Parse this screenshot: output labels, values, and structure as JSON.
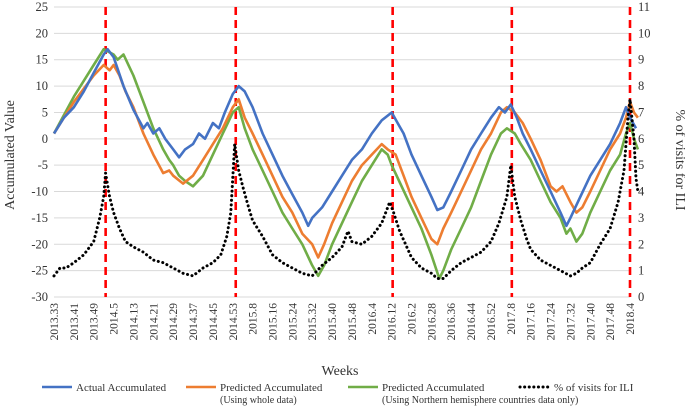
{
  "chart_data": {
    "type": "line",
    "xlabel": "Weeks",
    "ylabel_left": "Accumulated Value",
    "ylabel_right": "% of visits for ILI",
    "ylim_left": [
      -30,
      25
    ],
    "ylim_right": [
      0,
      11
    ],
    "yticks_left": [
      "-30",
      "-25",
      "-20",
      "-15",
      "-10",
      "-5",
      "0",
      "5",
      "10",
      "15",
      "20",
      "25"
    ],
    "yticks_right": [
      "0",
      "1",
      "2",
      "3",
      "4",
      "5",
      "6",
      "7",
      "8",
      "9",
      "10",
      "11"
    ],
    "x_tick_labels": [
      "2013.33",
      "2013.41",
      "2013.49",
      "2014.5",
      "2014.13",
      "2014.21",
      "2014.29",
      "2014.37",
      "2014.45",
      "2014.53",
      "2015.8",
      "2015.16",
      "2015.24",
      "2015.32",
      "2015.40",
      "2015.48",
      "2016.4",
      "2016.12",
      "2016.2",
      "2016.28",
      "2016.36",
      "2016.44",
      "2016.52",
      "2017.8",
      "2017.16",
      "2017.24",
      "2017.32",
      "2017.40",
      "2017.48",
      "2018.4"
    ],
    "x_index_range": [
      0,
      29
    ],
    "vertical_markers": [
      2.6,
      9.15,
      17.05,
      23.05,
      29.0
    ],
    "series": [
      {
        "name": "Actual Accumulated",
        "axis": "left",
        "color": "#4472C4",
        "points": [
          [
            0,
            1
          ],
          [
            0.5,
            4
          ],
          [
            1,
            6
          ],
          [
            1.5,
            9
          ],
          [
            2,
            12.5
          ],
          [
            2.5,
            16
          ],
          [
            2.7,
            17
          ],
          [
            3,
            15.5
          ],
          [
            3.5,
            10
          ],
          [
            4,
            5.5
          ],
          [
            4.5,
            2
          ],
          [
            4.7,
            3
          ],
          [
            5,
            1
          ],
          [
            5.3,
            2
          ],
          [
            5.6,
            0
          ],
          [
            6,
            -2
          ],
          [
            6.3,
            -3.5
          ],
          [
            6.6,
            -2
          ],
          [
            7,
            -1
          ],
          [
            7.3,
            1
          ],
          [
            7.6,
            0
          ],
          [
            8,
            3
          ],
          [
            8.3,
            2
          ],
          [
            8.6,
            5
          ],
          [
            9,
            8.5
          ],
          [
            9.3,
            10
          ],
          [
            9.6,
            9
          ],
          [
            10,
            6
          ],
          [
            10.5,
            1
          ],
          [
            11,
            -3
          ],
          [
            11.5,
            -7
          ],
          [
            12,
            -10.5
          ],
          [
            12.5,
            -14
          ],
          [
            12.8,
            -16.5
          ],
          [
            13,
            -15
          ],
          [
            13.5,
            -13
          ],
          [
            14,
            -10
          ],
          [
            14.5,
            -7
          ],
          [
            15,
            -4
          ],
          [
            15.5,
            -2
          ],
          [
            16,
            1
          ],
          [
            16.5,
            3.5
          ],
          [
            17,
            5
          ],
          [
            17.3,
            3
          ],
          [
            17.6,
            1
          ],
          [
            18,
            -3
          ],
          [
            18.5,
            -7
          ],
          [
            19,
            -11
          ],
          [
            19.3,
            -13.5
          ],
          [
            19.6,
            -13
          ],
          [
            20,
            -10
          ],
          [
            20.5,
            -6
          ],
          [
            21,
            -2
          ],
          [
            21.5,
            1
          ],
          [
            22,
            4
          ],
          [
            22.4,
            6
          ],
          [
            22.7,
            5
          ],
          [
            23,
            6.5
          ],
          [
            23.3,
            4
          ],
          [
            23.6,
            1
          ],
          [
            24,
            -2
          ],
          [
            24.5,
            -6
          ],
          [
            25,
            -10
          ],
          [
            25.5,
            -14
          ],
          [
            25.8,
            -16.5
          ],
          [
            26,
            -15
          ],
          [
            26.5,
            -11
          ],
          [
            27,
            -7
          ],
          [
            27.5,
            -4
          ],
          [
            28,
            -1
          ],
          [
            28.5,
            3
          ],
          [
            28.8,
            6
          ],
          [
            29,
            4
          ],
          [
            29.3,
            2
          ]
        ]
      },
      {
        "name": "Predicted Accumulated",
        "subtitle": "(Using whole data)",
        "axis": "left",
        "color": "#ED7D31",
        "points": [
          [
            0,
            1
          ],
          [
            0.5,
            4
          ],
          [
            1,
            7
          ],
          [
            1.5,
            9.5
          ],
          [
            2,
            12
          ],
          [
            2.5,
            14
          ],
          [
            2.8,
            13
          ],
          [
            3,
            14
          ],
          [
            3.3,
            12
          ],
          [
            3.6,
            9
          ],
          [
            4,
            6
          ],
          [
            4.5,
            1
          ],
          [
            5,
            -3
          ],
          [
            5.5,
            -6.5
          ],
          [
            5.8,
            -6
          ],
          [
            6,
            -7
          ],
          [
            6.5,
            -8.5
          ],
          [
            7,
            -7
          ],
          [
            7.5,
            -4
          ],
          [
            8,
            -1
          ],
          [
            8.5,
            2
          ],
          [
            9,
            6
          ],
          [
            9.3,
            7.5
          ],
          [
            9.6,
            4
          ],
          [
            10,
            1
          ],
          [
            10.5,
            -3
          ],
          [
            11,
            -7
          ],
          [
            11.5,
            -11
          ],
          [
            12,
            -14
          ],
          [
            12.5,
            -18
          ],
          [
            13,
            -20
          ],
          [
            13.3,
            -22.5
          ],
          [
            13.6,
            -20
          ],
          [
            14,
            -16
          ],
          [
            14.5,
            -12
          ],
          [
            15,
            -8
          ],
          [
            15.5,
            -5
          ],
          [
            16,
            -3
          ],
          [
            16.5,
            -1
          ],
          [
            16.8,
            -2
          ],
          [
            17.2,
            -3
          ],
          [
            17.6,
            -7
          ],
          [
            18,
            -11
          ],
          [
            18.5,
            -15
          ],
          [
            19,
            -19
          ],
          [
            19.3,
            -20
          ],
          [
            19.6,
            -17
          ],
          [
            20,
            -14
          ],
          [
            20.5,
            -10
          ],
          [
            21,
            -6
          ],
          [
            21.5,
            -2
          ],
          [
            22,
            1
          ],
          [
            22.5,
            5
          ],
          [
            22.8,
            6
          ],
          [
            23.2,
            5
          ],
          [
            23.6,
            3
          ],
          [
            24,
            0
          ],
          [
            24.5,
            -4
          ],
          [
            25,
            -9
          ],
          [
            25.3,
            -10
          ],
          [
            25.6,
            -9
          ],
          [
            26,
            -12
          ],
          [
            26.3,
            -14
          ],
          [
            26.6,
            -13
          ],
          [
            27,
            -10
          ],
          [
            27.5,
            -6
          ],
          [
            28,
            -2
          ],
          [
            28.5,
            1
          ],
          [
            28.8,
            4
          ],
          [
            29,
            7
          ],
          [
            29.2,
            5
          ],
          [
            29.4,
            4
          ]
        ]
      },
      {
        "name": "Predicted Accumulated",
        "subtitle": "(Using Northern hemisphere countries data only)",
        "axis": "left",
        "color": "#70AD47",
        "points": [
          [
            0,
            1
          ],
          [
            0.5,
            4.5
          ],
          [
            1,
            8
          ],
          [
            1.5,
            11
          ],
          [
            2,
            14
          ],
          [
            2.5,
            17
          ],
          [
            3,
            16
          ],
          [
            3.2,
            15
          ],
          [
            3.5,
            16
          ],
          [
            4,
            12
          ],
          [
            4.5,
            7
          ],
          [
            5,
            2
          ],
          [
            5.5,
            -2
          ],
          [
            5.8,
            -4
          ],
          [
            6,
            -5
          ],
          [
            6.3,
            -7
          ],
          [
            6.6,
            -8
          ],
          [
            7,
            -9
          ],
          [
            7.5,
            -7
          ],
          [
            8,
            -3
          ],
          [
            8.5,
            1
          ],
          [
            9,
            5
          ],
          [
            9.3,
            6
          ],
          [
            9.6,
            2
          ],
          [
            10,
            -2
          ],
          [
            10.5,
            -6
          ],
          [
            11,
            -10
          ],
          [
            11.5,
            -14
          ],
          [
            12,
            -17
          ],
          [
            12.5,
            -20
          ],
          [
            13,
            -24
          ],
          [
            13.3,
            -26
          ],
          [
            13.6,
            -24
          ],
          [
            14,
            -20
          ],
          [
            14.5,
            -16
          ],
          [
            15,
            -12
          ],
          [
            15.5,
            -8
          ],
          [
            16,
            -5
          ],
          [
            16.5,
            -2
          ],
          [
            16.8,
            -3
          ],
          [
            17,
            -5
          ],
          [
            17.5,
            -9
          ],
          [
            18,
            -13
          ],
          [
            18.5,
            -17
          ],
          [
            19,
            -22
          ],
          [
            19.4,
            -26.5
          ],
          [
            19.6,
            -25
          ],
          [
            20,
            -21
          ],
          [
            20.5,
            -17
          ],
          [
            21,
            -13
          ],
          [
            21.5,
            -8
          ],
          [
            22,
            -3
          ],
          [
            22.5,
            1
          ],
          [
            22.8,
            2
          ],
          [
            23.2,
            1
          ],
          [
            23.5,
            -1
          ],
          [
            24,
            -4
          ],
          [
            24.5,
            -8
          ],
          [
            25,
            -12
          ],
          [
            25.5,
            -15
          ],
          [
            25.8,
            -18
          ],
          [
            26,
            -17
          ],
          [
            26.3,
            -19.5
          ],
          [
            26.6,
            -18
          ],
          [
            27,
            -14
          ],
          [
            27.5,
            -10
          ],
          [
            28,
            -6
          ],
          [
            28.5,
            -3
          ],
          [
            28.8,
            1
          ],
          [
            29,
            3
          ],
          [
            29.2,
            0
          ],
          [
            29.4,
            -2
          ]
        ]
      },
      {
        "name": "% of visits for ILI",
        "axis": "right",
        "color": "#000000",
        "points": [
          [
            0,
            0.8
          ],
          [
            0.3,
            1.1
          ],
          [
            0.6,
            1.1
          ],
          [
            1,
            1.3
          ],
          [
            1.5,
            1.6
          ],
          [
            2,
            2.1
          ],
          [
            2.3,
            3
          ],
          [
            2.5,
            3.8
          ],
          [
            2.6,
            4.7
          ],
          [
            2.8,
            3.8
          ],
          [
            3,
            3.2
          ],
          [
            3.3,
            2.6
          ],
          [
            3.6,
            2.1
          ],
          [
            4,
            1.9
          ],
          [
            4.5,
            1.7
          ],
          [
            5,
            1.4
          ],
          [
            5.5,
            1.3
          ],
          [
            6,
            1.1
          ],
          [
            6.5,
            0.9
          ],
          [
            7,
            0.8
          ],
          [
            7.5,
            1.1
          ],
          [
            8,
            1.3
          ],
          [
            8.4,
            1.6
          ],
          [
            8.7,
            2.3
          ],
          [
            8.9,
            3.2
          ],
          [
            9.1,
            5.8
          ],
          [
            9.3,
            4.8
          ],
          [
            9.5,
            4.2
          ],
          [
            9.8,
            3.4
          ],
          [
            10,
            2.9
          ],
          [
            10.5,
            2.3
          ],
          [
            11,
            1.6
          ],
          [
            11.5,
            1.3
          ],
          [
            12,
            1.1
          ],
          [
            12.5,
            0.9
          ],
          [
            13,
            0.8
          ],
          [
            13.5,
            1.2
          ],
          [
            14,
            1.5
          ],
          [
            14.5,
            1.9
          ],
          [
            14.8,
            2.5
          ],
          [
            15,
            2.1
          ],
          [
            15.5,
            2.0
          ],
          [
            16,
            2.3
          ],
          [
            16.5,
            2.8
          ],
          [
            16.9,
            3.6
          ],
          [
            17.1,
            3.2
          ],
          [
            17.4,
            2.5
          ],
          [
            17.7,
            2.0
          ],
          [
            18,
            1.5
          ],
          [
            18.5,
            1.1
          ],
          [
            19,
            0.9
          ],
          [
            19.3,
            0.7
          ],
          [
            19.6,
            0.7
          ],
          [
            20,
            1.0
          ],
          [
            20.5,
            1.3
          ],
          [
            21,
            1.5
          ],
          [
            21.5,
            1.7
          ],
          [
            22,
            2.1
          ],
          [
            22.4,
            2.8
          ],
          [
            22.8,
            3.8
          ],
          [
            23,
            5.0
          ],
          [
            23.2,
            3.8
          ],
          [
            23.5,
            2.9
          ],
          [
            23.8,
            2.2
          ],
          [
            24,
            1.8
          ],
          [
            24.5,
            1.4
          ],
          [
            25,
            1.2
          ],
          [
            25.5,
            1.0
          ],
          [
            26,
            0.8
          ],
          [
            26.3,
            0.9
          ],
          [
            26.6,
            1.1
          ],
          [
            27,
            1.3
          ],
          [
            27.5,
            2.0
          ],
          [
            28,
            2.6
          ],
          [
            28.4,
            3.6
          ],
          [
            28.7,
            4.8
          ],
          [
            28.9,
            6.8
          ],
          [
            29,
            7.5
          ],
          [
            29.2,
            6.0
          ],
          [
            29.3,
            4.5
          ],
          [
            29.4,
            4.0
          ]
        ]
      }
    ],
    "legend": [
      {
        "label": "Actual Accumulated",
        "sub": "",
        "color": "#4472C4",
        "style": "solid"
      },
      {
        "label": "Predicted Accumulated",
        "sub": "(Using whole data)",
        "color": "#ED7D31",
        "style": "solid"
      },
      {
        "label": "Predicted Accumulated",
        "sub": "(Using Northern hemisphere countries data only)",
        "color": "#70AD47",
        "style": "solid"
      },
      {
        "label": "% of visits for ILI",
        "sub": "",
        "color": "#000000",
        "style": "dotted"
      }
    ]
  }
}
